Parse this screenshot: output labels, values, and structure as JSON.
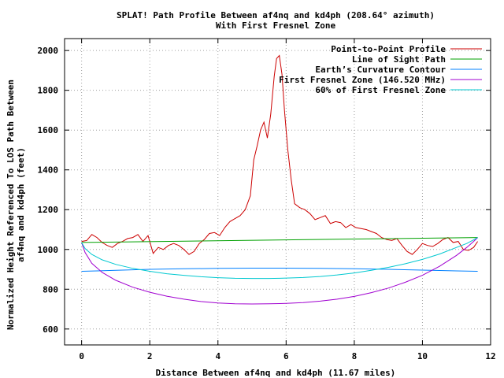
{
  "chart_data": {
    "type": "line",
    "title": "SPLAT! Path Profile Between af4nq and kd4ph (208.64° azimuth)",
    "subtitle": "With First Fresnel Zone",
    "xlabel": "Distance Between af4nq and kd4ph (11.67 miles)",
    "ylabel_line1": "Normalized Height Referenced To LOS Path Between",
    "ylabel_line2": "af4nq and kd4ph (feet)",
    "xlim": [
      -0.5,
      12
    ],
    "ylim": [
      520,
      2060
    ],
    "x_ticks": [
      0,
      2,
      4,
      6,
      8,
      10,
      12
    ],
    "y_ticks": [
      600,
      800,
      1000,
      1200,
      1400,
      1600,
      1800,
      2000
    ],
    "grid": true,
    "legend_position": "top-right",
    "series": [
      {
        "name": "Point-to-Point Profile",
        "color": "#cc0000",
        "x": [
          0,
          0.15,
          0.3,
          0.45,
          0.6,
          0.75,
          0.9,
          1.05,
          1.2,
          1.35,
          1.5,
          1.65,
          1.8,
          1.95,
          2.1,
          2.25,
          2.4,
          2.55,
          2.7,
          2.85,
          3.0,
          3.15,
          3.3,
          3.45,
          3.6,
          3.75,
          3.9,
          4.05,
          4.2,
          4.35,
          4.5,
          4.65,
          4.8,
          4.95,
          5.05,
          5.15,
          5.25,
          5.35,
          5.45,
          5.55,
          5.65,
          5.72,
          5.8,
          5.88,
          5.95,
          6.05,
          6.15,
          6.25,
          6.4,
          6.55,
          6.7,
          6.85,
          7.0,
          7.15,
          7.3,
          7.45,
          7.6,
          7.75,
          7.9,
          8.05,
          8.2,
          8.35,
          8.5,
          8.65,
          8.8,
          8.95,
          9.1,
          9.25,
          9.4,
          9.55,
          9.7,
          9.85,
          10.0,
          10.15,
          10.3,
          10.45,
          10.6,
          10.75,
          10.9,
          11.05,
          11.2,
          11.35,
          11.5,
          11.62
        ],
        "y": [
          1040,
          1045,
          1075,
          1060,
          1035,
          1020,
          1010,
          1030,
          1040,
          1055,
          1060,
          1075,
          1040,
          1070,
          980,
          1010,
          1000,
          1020,
          1030,
          1020,
          1000,
          975,
          990,
          1030,
          1050,
          1080,
          1085,
          1070,
          1110,
          1140,
          1155,
          1170,
          1200,
          1270,
          1450,
          1520,
          1600,
          1640,
          1560,
          1680,
          1870,
          1960,
          1975,
          1880,
          1700,
          1500,
          1350,
          1230,
          1210,
          1200,
          1180,
          1150,
          1160,
          1170,
          1130,
          1140,
          1135,
          1110,
          1125,
          1110,
          1105,
          1100,
          1090,
          1080,
          1060,
          1050,
          1045,
          1055,
          1020,
          990,
          975,
          1000,
          1030,
          1020,
          1015,
          1030,
          1050,
          1060,
          1035,
          1040,
          1000,
          995,
          1010,
          1040
        ]
      },
      {
        "name": "Line of Sight Path",
        "color": "#00a000",
        "x": [
          0,
          11.62
        ],
        "y": [
          1035,
          1060
        ]
      },
      {
        "name": "Earth’s Curvature Contour",
        "color": "#0080ff",
        "x": [
          0,
          1,
          2,
          3,
          4,
          5,
          6,
          7,
          8,
          9,
          10,
          11,
          11.62
        ],
        "y": [
          890,
          895,
          900,
          903,
          905,
          906,
          906,
          905,
          903,
          900,
          896,
          892,
          890
        ]
      },
      {
        "name": "First Fresnel Zone (146.520 MHz)",
        "color": "#a000d0",
        "x": [
          0,
          0.1,
          0.3,
          0.6,
          1,
          1.5,
          2,
          2.5,
          3,
          3.5,
          4,
          4.5,
          5,
          5.5,
          5.81,
          6,
          6.5,
          7,
          7.5,
          8,
          8.5,
          9,
          9.5,
          10,
          10.5,
          11,
          11.3,
          11.5,
          11.62
        ],
        "y": [
          1035,
          985,
          930,
          885,
          845,
          810,
          785,
          765,
          750,
          738,
          731,
          727,
          726,
          727,
          728,
          729,
          733,
          740,
          750,
          764,
          783,
          806,
          835,
          870,
          915,
          970,
          1010,
          1040,
          1060
        ]
      },
      {
        "name": "60% of First Fresnel Zone",
        "color": "#00c8d0",
        "x": [
          0,
          0.1,
          0.3,
          0.6,
          1,
          1.5,
          2,
          2.5,
          3,
          3.5,
          4,
          4.5,
          5,
          5.5,
          5.81,
          6,
          6.5,
          7,
          7.5,
          8,
          8.5,
          9,
          9.5,
          10,
          10.5,
          11,
          11.3,
          11.5,
          11.62
        ],
        "y": [
          1035,
          1005,
          975,
          948,
          925,
          905,
          890,
          878,
          870,
          863,
          858,
          855,
          854,
          854,
          855,
          856,
          859,
          864,
          872,
          882,
          895,
          910,
          928,
          950,
          977,
          1010,
          1030,
          1048,
          1060
        ]
      }
    ]
  }
}
